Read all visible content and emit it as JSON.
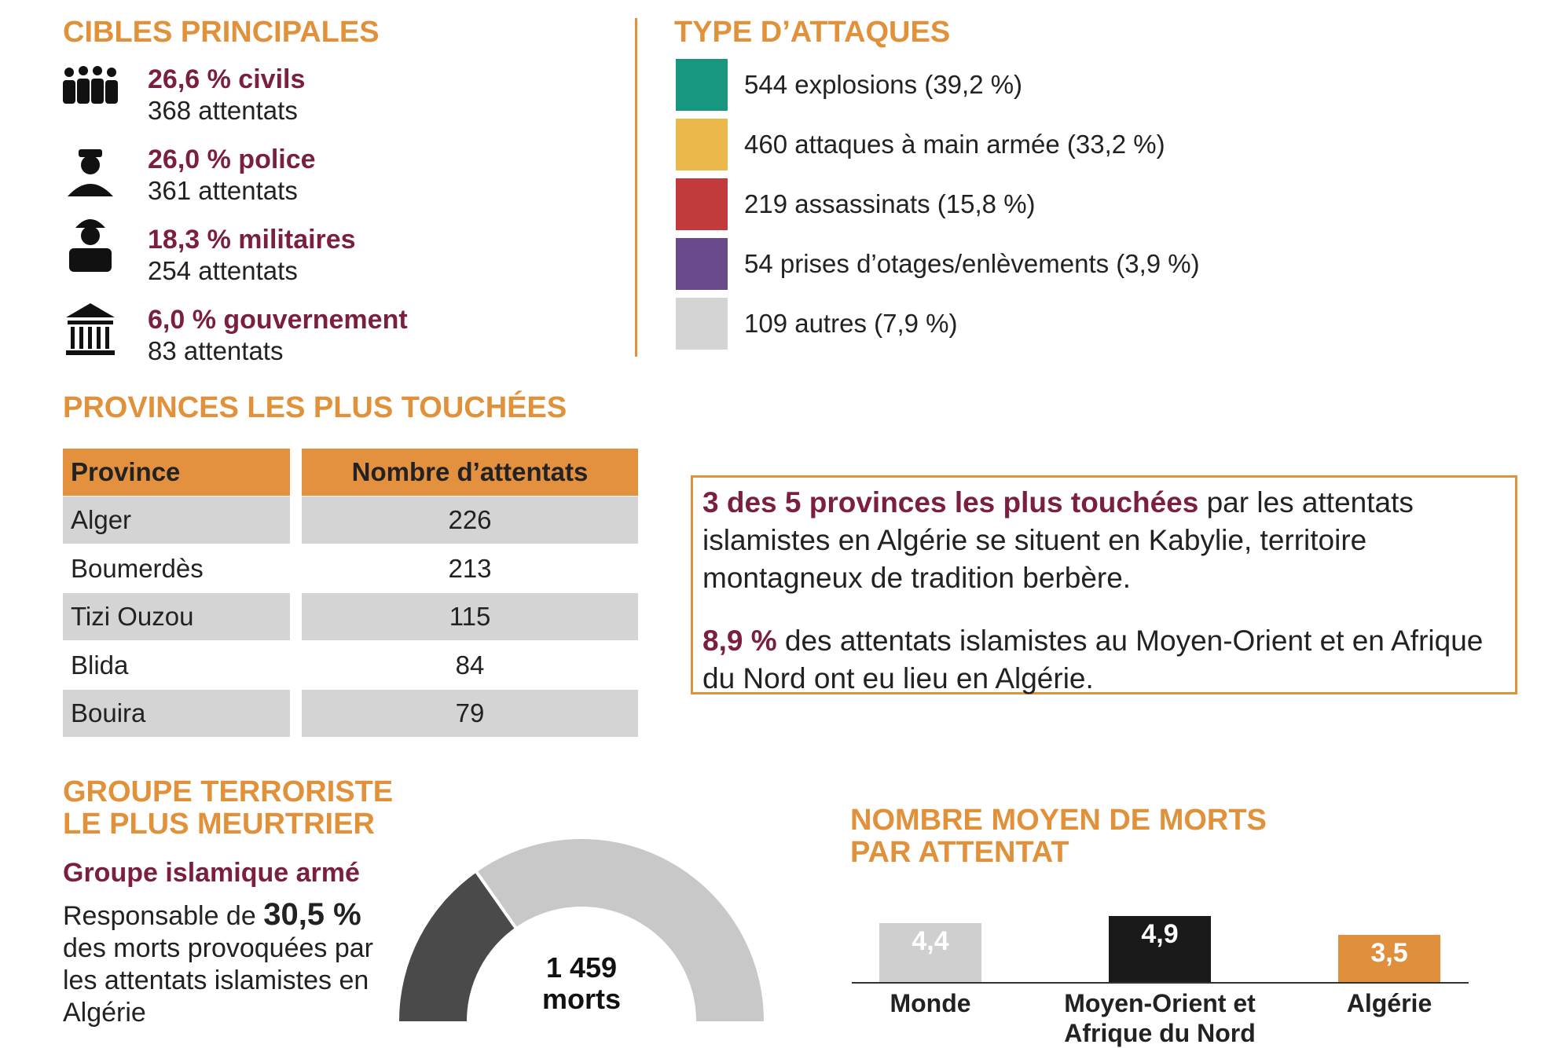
{
  "targets": {
    "title": "CIBLES PRINCIPALES",
    "items": [
      {
        "headline": "26,6 % civils",
        "count": "368 attentats"
      },
      {
        "headline": "26,0 % police",
        "count": "361 attentats"
      },
      {
        "headline": "18,3 % militaires",
        "count": "254 attentats"
      },
      {
        "headline": "6,0 % gouvernement",
        "count": "83 attentats"
      }
    ]
  },
  "attack_types": {
    "title": "TYPE D’ATTAQUES",
    "items": [
      {
        "label": "544 explosions (39,2 %)",
        "color": "#17977f"
      },
      {
        "label": "460 attaques à main armée (33,2 %)",
        "color": "#ebb94b"
      },
      {
        "label": "219 assassinats (15,8 %)",
        "color": "#c33a3c"
      },
      {
        "label": "54 prises d’otages/enlèvements (3,9 %)",
        "color": "#6b4a8c"
      },
      {
        "label": "109 autres (7,9 %)",
        "color": "#d4d4d4"
      }
    ]
  },
  "provinces": {
    "title": "PROVINCES LES PLUS TOUCHÉES",
    "table": {
      "header": [
        "Province",
        "Nombre d’attentats"
      ],
      "rows": [
        [
          "Alger",
          226
        ],
        [
          "Boumerdès",
          213
        ],
        [
          "Tizi Ouzou",
          115
        ],
        [
          "Blida",
          84
        ],
        [
          "Bouira",
          79
        ]
      ]
    }
  },
  "callout": {
    "p1_bold": "3 des 5 provinces les plus touchées",
    "p1_rest": "par les attentats islamistes en Algérie se situent en Kabylie, territoire montagneux de tradition berbère.",
    "p2_bold": "8,9 %",
    "p2_rest": "des attentats islamistes au Moyen-Orient et en Afrique du Nord ont eu lieu en Algérie."
  },
  "deadliest_group": {
    "title": [
      "GROUPE TERRORISTE",
      "LE PLUS MEURTRIER"
    ],
    "name": "Groupe islamique armé",
    "text_before": "Responsable de",
    "text_after": "des morts provoquées par les attentats islamistes en Algérie"
  },
  "chart_data": [
    {
      "type": "gauge",
      "values": [
        30.5
      ],
      "value_labels": [
        "30,5 %"
      ],
      "colors": [
        "#4a4a4a",
        "#c8c8c8"
      ],
      "center_text": [
        "1 459",
        "morts"
      ]
    },
    {
      "type": "bar",
      "title": [
        "NOMBRE MOYEN DE MORTS",
        "PAR ATTENTAT"
      ],
      "categories": [
        "Monde",
        "Moyen-Orient et Afrique du Nord",
        "Algérie"
      ],
      "values": [
        4.4,
        4.9,
        3.5
      ],
      "value_labels": [
        "4,4",
        "4,9",
        "3,5"
      ],
      "colors": [
        "#cfcfcf",
        "#1a1a1a",
        "#e0903c"
      ]
    }
  ]
}
